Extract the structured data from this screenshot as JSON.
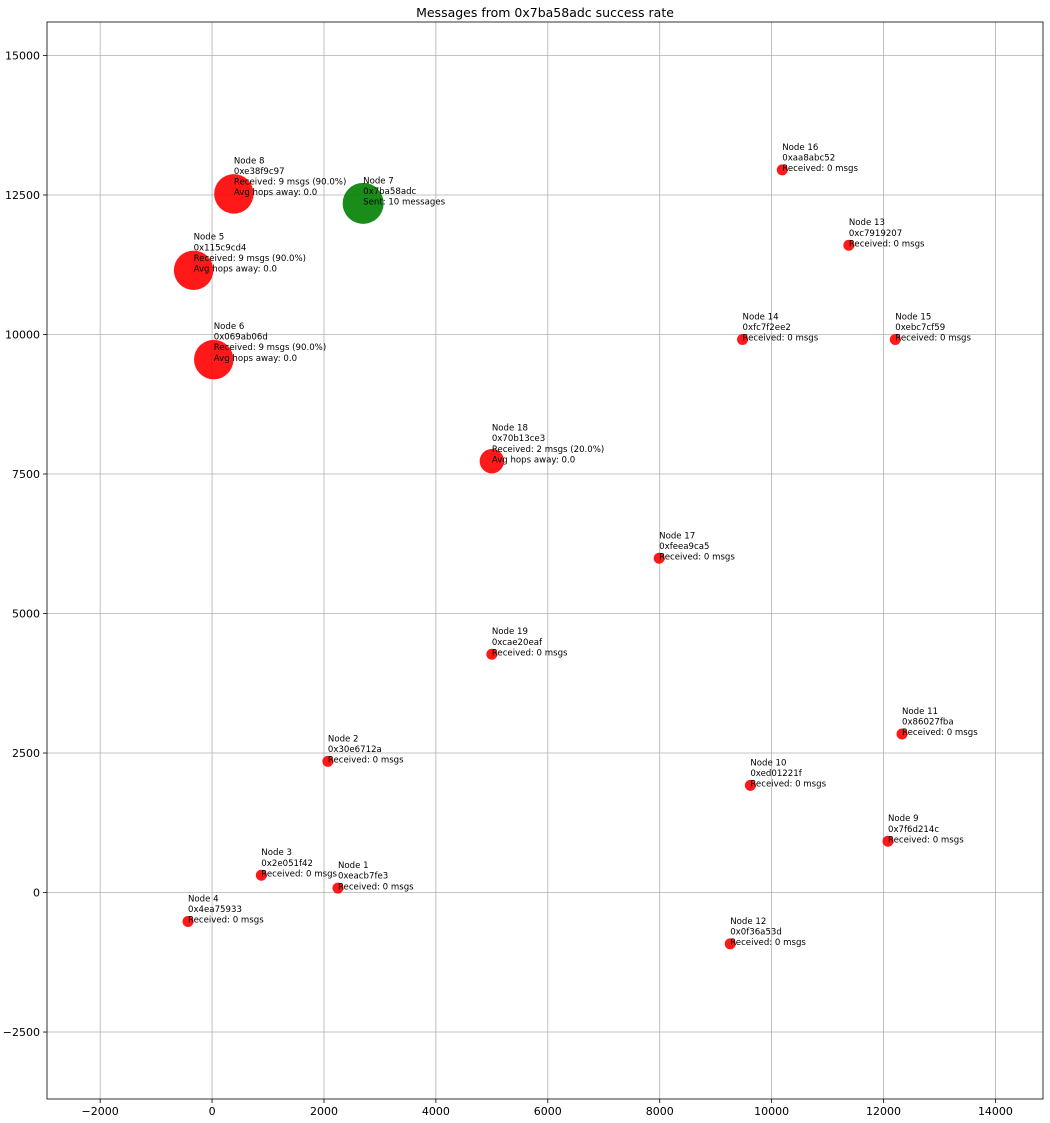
{
  "chart_data": {
    "type": "scatter",
    "title": "Messages from 0x7ba58adc success rate",
    "xlabel": "",
    "ylabel": "",
    "xlim": [
      -2950,
      14850
    ],
    "ylim": [
      -3700,
      15600
    ],
    "grid": true,
    "x_ticks": [
      -2000,
      0,
      2000,
      4000,
      6000,
      8000,
      10000,
      12000,
      14000
    ],
    "y_ticks": [
      -2500,
      0,
      2500,
      5000,
      7500,
      10000,
      12500,
      15000
    ],
    "x_tick_labels": [
      "−2000",
      "0",
      "2000",
      "4000",
      "6000",
      "8000",
      "10000",
      "12000",
      "14000"
    ],
    "y_tick_labels": [
      "−2500",
      "0",
      "2500",
      "5000",
      "7500",
      "10000",
      "12500",
      "15000"
    ],
    "colors": {
      "sender": "#008000",
      "receiver": "#ff0000"
    },
    "points": [
      {
        "name": "Node 1",
        "x": 2250,
        "y": 80,
        "role": "receiver",
        "received_msgs": 0,
        "lines": [
          "Node 1",
          "0xeacb7fe3",
          "Received: 0 msgs"
        ]
      },
      {
        "name": "Node 2",
        "x": 2070,
        "y": 2350,
        "role": "receiver",
        "received_msgs": 0,
        "lines": [
          "Node 2",
          "0x30e6712a",
          "Received: 0 msgs"
        ]
      },
      {
        "name": "Node 3",
        "x": 880,
        "y": 310,
        "role": "receiver",
        "received_msgs": 0,
        "lines": [
          "Node 3",
          "0x2e051f42",
          "Received: 0 msgs"
        ]
      },
      {
        "name": "Node 4",
        "x": -430,
        "y": -520,
        "role": "receiver",
        "received_msgs": 0,
        "lines": [
          "Node 4",
          "0x4ea75933",
          "Received: 0 msgs"
        ]
      },
      {
        "name": "Node 5",
        "x": -330,
        "y": 11150,
        "role": "receiver",
        "received_msgs": 9,
        "lines": [
          "Node 5",
          "0x115c9cd4",
          "Received: 9 msgs (90.0%)",
          "Avg hops away: 0.0"
        ]
      },
      {
        "name": "Node 6",
        "x": 30,
        "y": 9550,
        "role": "receiver",
        "received_msgs": 9,
        "lines": [
          "Node 6",
          "0x069ab06d",
          "Received: 9 msgs (90.0%)",
          "Avg hops away: 0.0"
        ]
      },
      {
        "name": "Node 7",
        "x": 2700,
        "y": 12350,
        "role": "sender",
        "sent_msgs": 10,
        "lines": [
          "Node 7",
          "0x7ba58adc",
          "Sent: 10 messages"
        ]
      },
      {
        "name": "Node 8",
        "x": 390,
        "y": 12520,
        "role": "receiver",
        "received_msgs": 9,
        "lines": [
          "Node 8",
          "0xe38f9c97",
          "Received: 9 msgs (90.0%)",
          "Avg hops away: 0.0"
        ]
      },
      {
        "name": "Node 9",
        "x": 12080,
        "y": 920,
        "role": "receiver",
        "received_msgs": 0,
        "lines": [
          "Node 9",
          "0x7f6d214c",
          "Received: 0 msgs"
        ]
      },
      {
        "name": "Node 10",
        "x": 9620,
        "y": 1920,
        "role": "receiver",
        "received_msgs": 0,
        "lines": [
          "Node 10",
          "0xed01221f",
          "Received: 0 msgs"
        ]
      },
      {
        "name": "Node 11",
        "x": 12330,
        "y": 2840,
        "role": "receiver",
        "received_msgs": 0,
        "lines": [
          "Node 11",
          "0x86027fba",
          "Received: 0 msgs"
        ]
      },
      {
        "name": "Node 12",
        "x": 9260,
        "y": -920,
        "role": "receiver",
        "received_msgs": 0,
        "lines": [
          "Node 12",
          "0x0f36a53d",
          "Received: 0 msgs"
        ]
      },
      {
        "name": "Node 13",
        "x": 11380,
        "y": 11600,
        "role": "receiver",
        "received_msgs": 0,
        "lines": [
          "Node 13",
          "0xc7919207",
          "Received: 0 msgs"
        ]
      },
      {
        "name": "Node 14",
        "x": 9480,
        "y": 9910,
        "role": "receiver",
        "received_msgs": 0,
        "lines": [
          "Node 14",
          "0xfc7f2ee2",
          "Received: 0 msgs"
        ]
      },
      {
        "name": "Node 15",
        "x": 12210,
        "y": 9910,
        "role": "receiver",
        "received_msgs": 0,
        "lines": [
          "Node 15",
          "0xebc7cf59",
          "Received: 0 msgs"
        ]
      },
      {
        "name": "Node 16",
        "x": 10190,
        "y": 12950,
        "role": "receiver",
        "received_msgs": 0,
        "lines": [
          "Node 16",
          "0xaa8abc52",
          "Received: 0 msgs"
        ]
      },
      {
        "name": "Node 17",
        "x": 7990,
        "y": 5990,
        "role": "receiver",
        "received_msgs": 0,
        "lines": [
          "Node 17",
          "0xfeea9ca5",
          "Received: 0 msgs"
        ]
      },
      {
        "name": "Node 18",
        "x": 5000,
        "y": 7730,
        "role": "receiver",
        "received_msgs": 2,
        "lines": [
          "Node 18",
          "0x70b13ce3",
          "Received: 2 msgs (20.0%)",
          "Avg hops away: 0.0"
        ]
      },
      {
        "name": "Node 19",
        "x": 5000,
        "y": 4270,
        "role": "receiver",
        "received_msgs": 0,
        "lines": [
          "Node 19",
          "0xcae20eaf",
          "Received: 0 msgs"
        ]
      }
    ]
  }
}
